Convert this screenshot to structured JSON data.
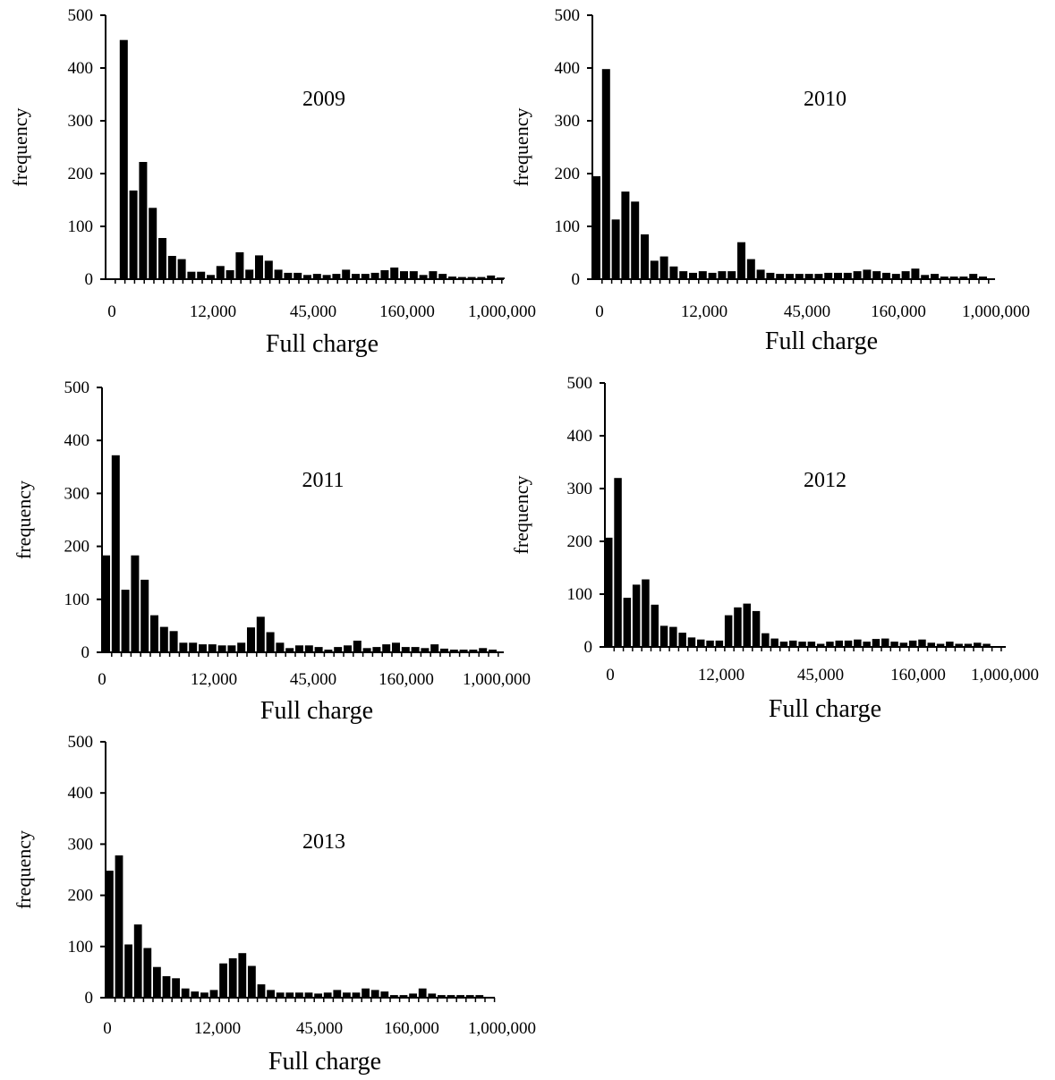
{
  "chart_data": [
    {
      "type": "bar",
      "title": "2009",
      "xlabel": "Full charge",
      "ylabel": "frequency",
      "ylim": [
        0,
        500
      ],
      "yticks": [
        0,
        100,
        200,
        300,
        400,
        500
      ],
      "xticks": [
        "0",
        "12,000",
        "45,000",
        "160,000",
        "1,000,000"
      ],
      "values": [
        0,
        453,
        168,
        222,
        135,
        78,
        44,
        38,
        14,
        14,
        8,
        25,
        17,
        51,
        18,
        45,
        35,
        18,
        12,
        12,
        8,
        10,
        8,
        10,
        18,
        10,
        10,
        12,
        17,
        22,
        15,
        15,
        8,
        15,
        10,
        5,
        4,
        4,
        4,
        7,
        3
      ]
    },
    {
      "type": "bar",
      "title": "2010",
      "xlabel": "Full charge",
      "ylabel": "frequency",
      "ylim": [
        0,
        500
      ],
      "yticks": [
        0,
        100,
        200,
        300,
        400,
        500
      ],
      "xticks": [
        "0",
        "12,000",
        "45,000",
        "160,000",
        "1,000,000"
      ],
      "values": [
        195,
        398,
        113,
        166,
        147,
        85,
        35,
        43,
        24,
        15,
        12,
        15,
        12,
        15,
        15,
        70,
        38,
        18,
        12,
        10,
        10,
        10,
        10,
        10,
        12,
        12,
        12,
        15,
        18,
        15,
        12,
        10,
        15,
        20,
        8,
        10,
        5,
        5,
        5,
        10,
        5
      ]
    },
    {
      "type": "bar",
      "title": "2011",
      "xlabel": "Full charge",
      "ylabel": "frequency",
      "ylim": [
        0,
        500
      ],
      "yticks": [
        0,
        100,
        200,
        300,
        400,
        500
      ],
      "xticks": [
        "0",
        "12,000",
        "45,000",
        "160,000",
        "1,000,000"
      ],
      "values": [
        183,
        372,
        118,
        183,
        137,
        70,
        48,
        40,
        18,
        18,
        15,
        15,
        13,
        13,
        18,
        47,
        67,
        38,
        18,
        8,
        13,
        13,
        10,
        5,
        10,
        13,
        22,
        8,
        10,
        15,
        18,
        10,
        10,
        8,
        15,
        7,
        5,
        5,
        5,
        8,
        5
      ]
    },
    {
      "type": "bar",
      "title": "2012",
      "xlabel": "Full charge",
      "ylabel": "frequency",
      "ylim": [
        0,
        500
      ],
      "yticks": [
        0,
        100,
        200,
        300,
        400,
        500
      ],
      "xticks": [
        "0",
        "12,000",
        "45,000",
        "160,000",
        "1,000,000"
      ],
      "values": [
        207,
        320,
        93,
        118,
        128,
        80,
        40,
        38,
        27,
        18,
        14,
        12,
        12,
        60,
        75,
        82,
        68,
        26,
        16,
        10,
        12,
        10,
        10,
        6,
        10,
        12,
        12,
        14,
        10,
        15,
        16,
        10,
        8,
        12,
        14,
        8,
        6,
        10,
        6,
        6,
        8,
        6
      ]
    },
    {
      "type": "bar",
      "title": "2013",
      "xlabel": "Full charge",
      "ylabel": "frequency",
      "ylim": [
        0,
        500
      ],
      "yticks": [
        0,
        100,
        200,
        300,
        400,
        500
      ],
      "xticks": [
        "0",
        "12,000",
        "45,000",
        "160,000",
        "1,000,000"
      ],
      "values": [
        248,
        278,
        104,
        143,
        97,
        60,
        42,
        38,
        18,
        12,
        10,
        15,
        67,
        77,
        87,
        62,
        26,
        15,
        10,
        10,
        10,
        10,
        8,
        10,
        15,
        10,
        10,
        18,
        15,
        12,
        5,
        5,
        8,
        18,
        8,
        5,
        5,
        5,
        5,
        5
      ]
    }
  ]
}
